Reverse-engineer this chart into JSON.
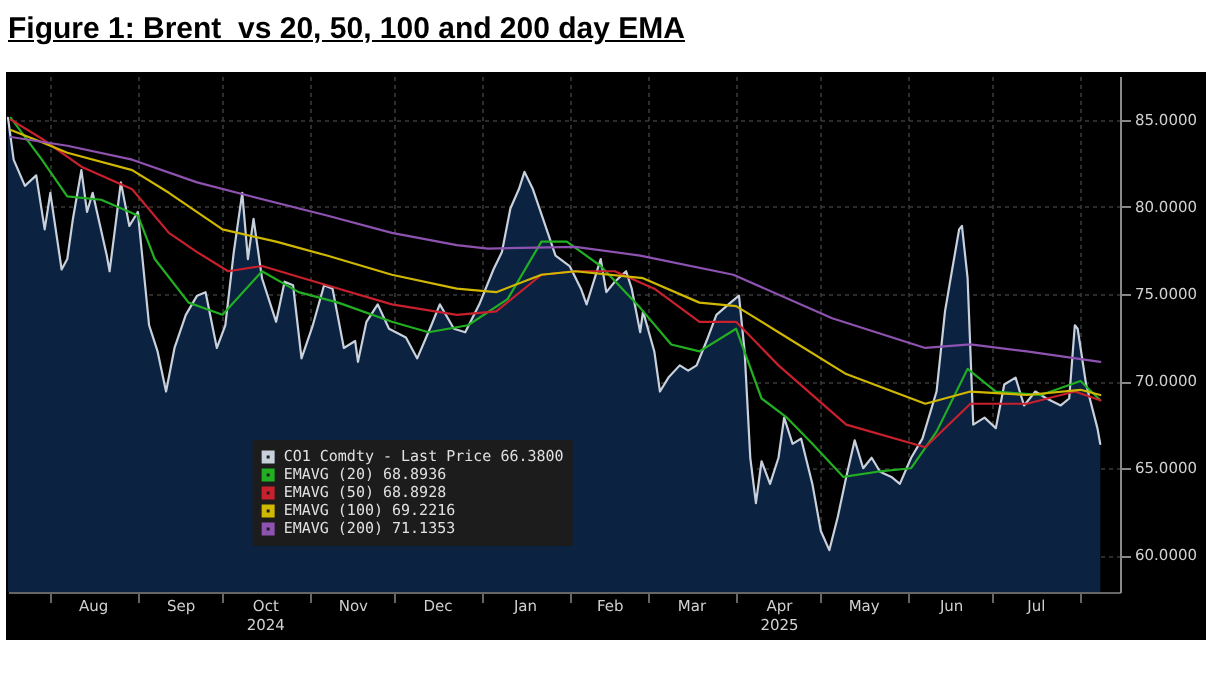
{
  "chart_data": {
    "type": "line",
    "title": "Figure 1: Brent  vs 20, 50, 100 and 200 day EMA",
    "xlim": [
      "2024-07-17",
      "2025-08-15"
    ],
    "xticks": [
      {
        "value": "2024-08-01",
        "label": null
      },
      {
        "value": "2024-09-01",
        "label": null
      },
      {
        "value": "2024-10-01",
        "label": null
      },
      {
        "value": "2024-11-01",
        "label": null
      },
      {
        "value": "2024-12-01",
        "label": null
      },
      {
        "value": "2025-01-01",
        "label": null
      },
      {
        "value": "2025-02-01",
        "label": null
      },
      {
        "value": "2025-03-01",
        "label": null
      },
      {
        "value": "2025-04-01",
        "label": null
      },
      {
        "value": "2025-05-01",
        "label": null
      },
      {
        "value": "2025-06-01",
        "label": null
      },
      {
        "value": "2025-07-01",
        "label": null
      },
      {
        "value": "2025-08-01",
        "label": null
      },
      {
        "value": "2024-08-16",
        "label": "Aug"
      },
      {
        "value": "2024-09-16",
        "label": "Sep"
      },
      {
        "value": "2024-10-16",
        "label": "Oct\n2024"
      },
      {
        "value": "2024-11-16",
        "label": "Nov"
      },
      {
        "value": "2024-12-16",
        "label": "Dec"
      },
      {
        "value": "2025-01-16",
        "label": "Jan"
      },
      {
        "value": "2025-02-15",
        "label": "Feb"
      },
      {
        "value": "2025-03-16",
        "label": "Mar"
      },
      {
        "value": "2025-04-16",
        "label": "Apr\n2025"
      },
      {
        "value": "2025-05-16",
        "label": "May"
      },
      {
        "value": "2025-06-16",
        "label": "Jun"
      },
      {
        "value": "2025-07-16",
        "label": "Jul"
      }
    ],
    "ylim": [
      57.9,
      87.5
    ],
    "yticks": [
      {
        "value": 60,
        "label": "60.0000"
      },
      {
        "value": 65,
        "label": "65.0000"
      },
      {
        "value": 70,
        "label": "70.0000"
      },
      {
        "value": 75,
        "label": "75.0000"
      },
      {
        "value": 80,
        "label": "80.0000"
      },
      {
        "value": 85,
        "label": "85.0000"
      }
    ],
    "grid": true,
    "legend": "bottom",
    "series": [
      {
        "name": "CO1 Comdty - Last Price 66.3800",
        "type": "area",
        "color": "#c8d0dc",
        "x": [
          "2024-07-17",
          "2024-07-19",
          "2024-07-23",
          "2024-07-27",
          "2024-07-30",
          "2024-08-01",
          "2024-08-05",
          "2024-08-07",
          "2024-08-09",
          "2024-08-12",
          "2024-08-14",
          "2024-08-16",
          "2024-08-21",
          "2024-08-22",
          "2024-08-26",
          "2024-08-29",
          "2024-09-01",
          "2024-09-05",
          "2024-09-08",
          "2024-09-11",
          "2024-09-14",
          "2024-09-18",
          "2024-09-22",
          "2024-09-25",
          "2024-09-29",
          "2024-10-02",
          "2024-10-05",
          "2024-10-08",
          "2024-10-10",
          "2024-10-12",
          "2024-10-15",
          "2024-10-20",
          "2024-10-23",
          "2024-10-26",
          "2024-10-29",
          "2024-11-02",
          "2024-11-06",
          "2024-11-09",
          "2024-11-13",
          "2024-11-17",
          "2024-11-18",
          "2024-11-21",
          "2024-11-25",
          "2024-11-29",
          "2024-12-05",
          "2024-12-09",
          "2024-12-14",
          "2024-12-17",
          "2024-12-22",
          "2024-12-26",
          "2024-12-31",
          "2025-01-05",
          "2025-01-08",
          "2025-01-11",
          "2025-01-14",
          "2025-01-16",
          "2025-01-19",
          "2025-01-23",
          "2025-01-27",
          "2025-02-01",
          "2025-02-05",
          "2025-02-07",
          "2025-02-12",
          "2025-02-14",
          "2025-02-17",
          "2025-02-21",
          "2025-02-23",
          "2025-02-26",
          "2025-02-27",
          "2025-03-03",
          "2025-03-05",
          "2025-03-08",
          "2025-03-12",
          "2025-03-15",
          "2025-03-18",
          "2025-03-22",
          "2025-03-25",
          "2025-03-30",
          "2025-04-02",
          "2025-04-04",
          "2025-04-06",
          "2025-04-08",
          "2025-04-10",
          "2025-04-13",
          "2025-04-16",
          "2025-04-18",
          "2025-04-21",
          "2025-04-24",
          "2025-04-28",
          "2025-05-01",
          "2025-05-04",
          "2025-05-07",
          "2025-05-10",
          "2025-05-13",
          "2025-05-16",
          "2025-05-19",
          "2025-05-22",
          "2025-05-26",
          "2025-05-29",
          "2025-06-02",
          "2025-06-06",
          "2025-06-11",
          "2025-06-14",
          "2025-06-16",
          "2025-06-19",
          "2025-06-20",
          "2025-06-22",
          "2025-06-24",
          "2025-06-28",
          "2025-07-02",
          "2025-07-05",
          "2025-07-09",
          "2025-07-12",
          "2025-07-16",
          "2025-07-20",
          "2025-07-25",
          "2025-07-28",
          "2025-07-30",
          "2025-07-31",
          "2025-08-03",
          "2025-08-07",
          "2025-08-08"
        ],
        "values": [
          85.1,
          82.7,
          81.2,
          81.8,
          78.7,
          80.8,
          76.4,
          77.0,
          79.3,
          82.1,
          79.7,
          80.8,
          77.2,
          76.3,
          81.4,
          78.9,
          79.7,
          73.2,
          71.7,
          69.4,
          71.9,
          73.8,
          74.9,
          75.1,
          71.9,
          73.2,
          77.4,
          80.8,
          77.0,
          79.3,
          75.9,
          73.4,
          75.7,
          75.5,
          71.3,
          73.2,
          75.5,
          75.3,
          71.9,
          72.3,
          71.1,
          73.4,
          74.4,
          73.0,
          72.5,
          71.3,
          73.2,
          74.4,
          73.0,
          72.8,
          74.4,
          76.4,
          77.4,
          79.9,
          81.0,
          82.0,
          81.0,
          79.1,
          77.2,
          76.6,
          75.3,
          74.4,
          77.0,
          75.1,
          75.7,
          76.3,
          75.3,
          72.8,
          74.0,
          71.7,
          69.4,
          70.2,
          70.9,
          70.6,
          70.9,
          72.5,
          73.8,
          74.5,
          74.9,
          71.7,
          65.6,
          63.0,
          65.4,
          64.1,
          65.6,
          67.9,
          66.4,
          66.7,
          64.1,
          61.4,
          60.3,
          62.2,
          64.5,
          66.6,
          65.0,
          65.6,
          64.8,
          64.5,
          64.1,
          65.6,
          66.7,
          69.4,
          74.0,
          75.9,
          78.7,
          78.9,
          75.9,
          67.5,
          67.9,
          67.3,
          69.8,
          70.2,
          68.6,
          69.4,
          69.0,
          68.6,
          69.0,
          73.2,
          73.0,
          69.8,
          67.3,
          66.4
        ]
      },
      {
        "name": "EMAVG (20) 68.8936",
        "color": "#22b022",
        "x": [
          "2024-07-18",
          "2024-07-29",
          "2024-08-07",
          "2024-08-19",
          "2024-09-01",
          "2024-09-07",
          "2024-09-19",
          "2024-10-01",
          "2024-10-15",
          "2024-10-28",
          "2024-11-11",
          "2024-11-30",
          "2024-12-13",
          "2024-12-27",
          "2025-01-10",
          "2025-01-22",
          "2025-01-31",
          "2025-02-12",
          "2025-02-26",
          "2025-03-09",
          "2025-03-19",
          "2025-04-01",
          "2025-04-10",
          "2025-04-19",
          "2025-04-28",
          "2025-05-09",
          "2025-05-21",
          "2025-06-02",
          "2025-06-11",
          "2025-06-22",
          "2025-07-02",
          "2025-07-18",
          "2025-08-01",
          "2025-08-08"
        ],
        "values": [
          85.1,
          82.7,
          80.6,
          80.4,
          79.5,
          77.0,
          74.5,
          73.8,
          76.3,
          75.1,
          74.5,
          73.4,
          72.8,
          73.2,
          74.7,
          78.0,
          78.0,
          76.6,
          74.2,
          72.1,
          71.7,
          73.0,
          69.0,
          67.9,
          66.4,
          64.5,
          64.8,
          65.0,
          67.1,
          70.7,
          69.4,
          69.2,
          70.0,
          68.9
        ]
      },
      {
        "name": "EMAVG (50) 68.8928",
        "color": "#c8202c",
        "x": [
          "2024-07-18",
          "2024-07-29",
          "2024-08-12",
          "2024-08-30",
          "2024-09-12",
          "2024-09-22",
          "2024-10-03",
          "2024-10-15",
          "2024-11-07",
          "2024-11-30",
          "2024-12-23",
          "2025-01-06",
          "2025-01-22",
          "2025-02-03",
          "2025-02-17",
          "2025-03-03",
          "2025-03-19",
          "2025-04-01",
          "2025-04-16",
          "2025-05-10",
          "2025-06-07",
          "2025-06-23",
          "2025-07-13",
          "2025-07-30",
          "2025-08-08"
        ],
        "values": [
          85.0,
          83.9,
          82.3,
          81.0,
          78.5,
          77.4,
          76.3,
          76.6,
          75.5,
          74.4,
          73.8,
          74.0,
          76.1,
          76.3,
          76.3,
          75.3,
          73.4,
          73.4,
          70.9,
          67.5,
          66.2,
          68.7,
          68.7,
          69.4,
          68.9
        ]
      },
      {
        "name": "EMAVG (100) 69.2216",
        "color": "#d0b800",
        "x": [
          "2024-07-18",
          "2024-07-29",
          "2024-08-07",
          "2024-08-30",
          "2024-09-12",
          "2024-10-01",
          "2024-10-20",
          "2024-11-07",
          "2024-11-30",
          "2024-12-23",
          "2025-01-06",
          "2025-01-22",
          "2025-02-03",
          "2025-02-27",
          "2025-03-19",
          "2025-04-01",
          "2025-04-16",
          "2025-05-10",
          "2025-06-07",
          "2025-06-23",
          "2025-07-13",
          "2025-08-01",
          "2025-08-08"
        ],
        "values": [
          84.4,
          83.7,
          83.1,
          82.1,
          80.8,
          78.7,
          78.0,
          77.2,
          76.1,
          75.3,
          75.1,
          76.1,
          76.3,
          75.9,
          74.5,
          74.3,
          72.8,
          70.4,
          68.7,
          69.4,
          69.2,
          69.5,
          69.2
        ]
      },
      {
        "name": "EMAVG (200) 71.1353",
        "color": "#8e52b0",
        "x": [
          "2024-07-18",
          "2024-08-07",
          "2024-08-30",
          "2024-09-22",
          "2024-10-11",
          "2024-11-07",
          "2024-11-30",
          "2024-12-23",
          "2025-01-03",
          "2025-02-03",
          "2025-02-26",
          "2025-03-31",
          "2025-05-05",
          "2025-06-07",
          "2025-06-23",
          "2025-07-13",
          "2025-08-08"
        ],
        "values": [
          84.0,
          83.5,
          82.7,
          81.4,
          80.6,
          79.5,
          78.5,
          77.8,
          77.6,
          77.7,
          77.2,
          76.1,
          73.6,
          71.9,
          72.1,
          71.7,
          71.1
        ]
      }
    ]
  }
}
